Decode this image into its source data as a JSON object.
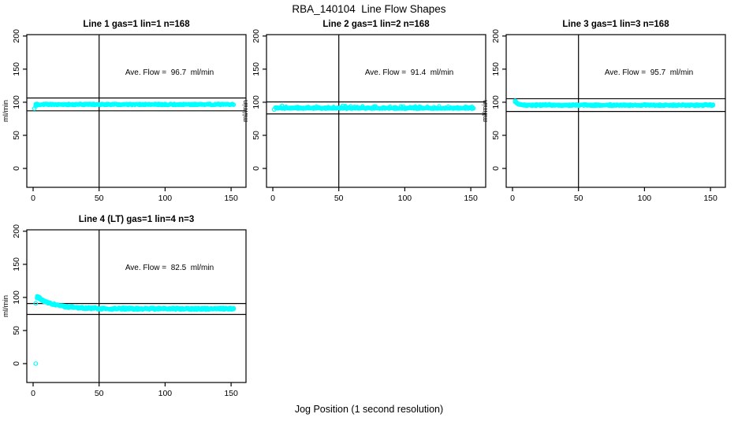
{
  "page": {
    "title": "RBA_140104  Line Flow Shapes",
    "xlabel": "Jog Position (1 second resolution)"
  },
  "chart_data": {
    "type": "scatter",
    "title": "RBA_140104  Line Flow Shapes",
    "xlabel": "Jog Position (1 second resolution)",
    "ylabel": "ml/min",
    "x_ticks": [
      0,
      50,
      100,
      150
    ],
    "y_ticks": [
      0,
      50,
      100,
      150,
      200
    ],
    "x_box_range": [
      -4.8,
      161.3
    ],
    "y_box_range": [
      -28.6,
      202.4
    ],
    "grid": false,
    "legend": "none",
    "point_color": "#00ffff",
    "axis_color": "#000000",
    "panels": [
      {
        "title": "Line 1 gas=1 lin=1 n=168",
        "gas": 1,
        "lin": 1,
        "n": 168,
        "annotation": "Ave. Flow =  96.7  ml/min",
        "ave_flow_ml_min": 96.7,
        "ref_line_upper": 106.4,
        "ref_line_lower": 87.0,
        "vline_x": 50,
        "series": {
          "x_start": 2,
          "x_end": 152,
          "start_value": 96.7,
          "settle_value": 96.7,
          "decay_tau": 2,
          "spread": 1.1,
          "spike_up": 0,
          "outliers": [
            [
              1,
              90.5
            ],
            [
              2,
              94
            ]
          ]
        }
      },
      {
        "title": "Line 2 gas=1 lin=2 n=168",
        "gas": 1,
        "lin": 2,
        "n": 168,
        "annotation": "Ave. Flow =  91.4  ml/min",
        "ave_flow_ml_min": 91.4,
        "ref_line_upper": 100.5,
        "ref_line_lower": 82.3,
        "vline_x": 50,
        "series": {
          "x_start": 2,
          "x_end": 152,
          "start_value": 91.5,
          "settle_value": 91.0,
          "decay_tau": 2,
          "spread": 1.0,
          "spike_up": 3.2,
          "outliers": [
            [
              1,
              89
            ]
          ]
        }
      },
      {
        "title": "Line 3 gas=1 lin=3 n=168",
        "gas": 1,
        "lin": 3,
        "n": 168,
        "annotation": "Ave. Flow =  95.7  ml/min",
        "ave_flow_ml_min": 95.7,
        "ref_line_upper": 105.3,
        "ref_line_lower": 86.1,
        "vline_x": 50,
        "series": {
          "x_start": 2,
          "x_end": 152,
          "start_value": 101.5,
          "settle_value": 95.5,
          "decay_tau": 2.2,
          "spread": 1.2,
          "spike_up": 0.8,
          "outliers": [
            [
              2,
              100.5
            ],
            [
              2.6,
              101
            ]
          ]
        }
      },
      {
        "title": "Line 4 (LT) gas=1 lin=4 n=3",
        "gas": 1,
        "lin": 4,
        "n": 3,
        "annotation": "Ave. Flow =  82.5  ml/min",
        "ave_flow_ml_min": 82.5,
        "ref_line_upper": 90.8,
        "ref_line_lower": 74.3,
        "vline_x": 50,
        "series": {
          "x_start": 3,
          "x_end": 152,
          "start_value": 100.5,
          "settle_value": 82.8,
          "decay_tau": 13,
          "spread": 1.5,
          "spike_up": 0.5,
          "outliers": [
            [
              2,
              0
            ],
            [
              2,
              91
            ],
            [
              3,
              99
            ],
            [
              4,
              101
            ],
            [
              5,
              100
            ]
          ]
        }
      }
    ]
  }
}
